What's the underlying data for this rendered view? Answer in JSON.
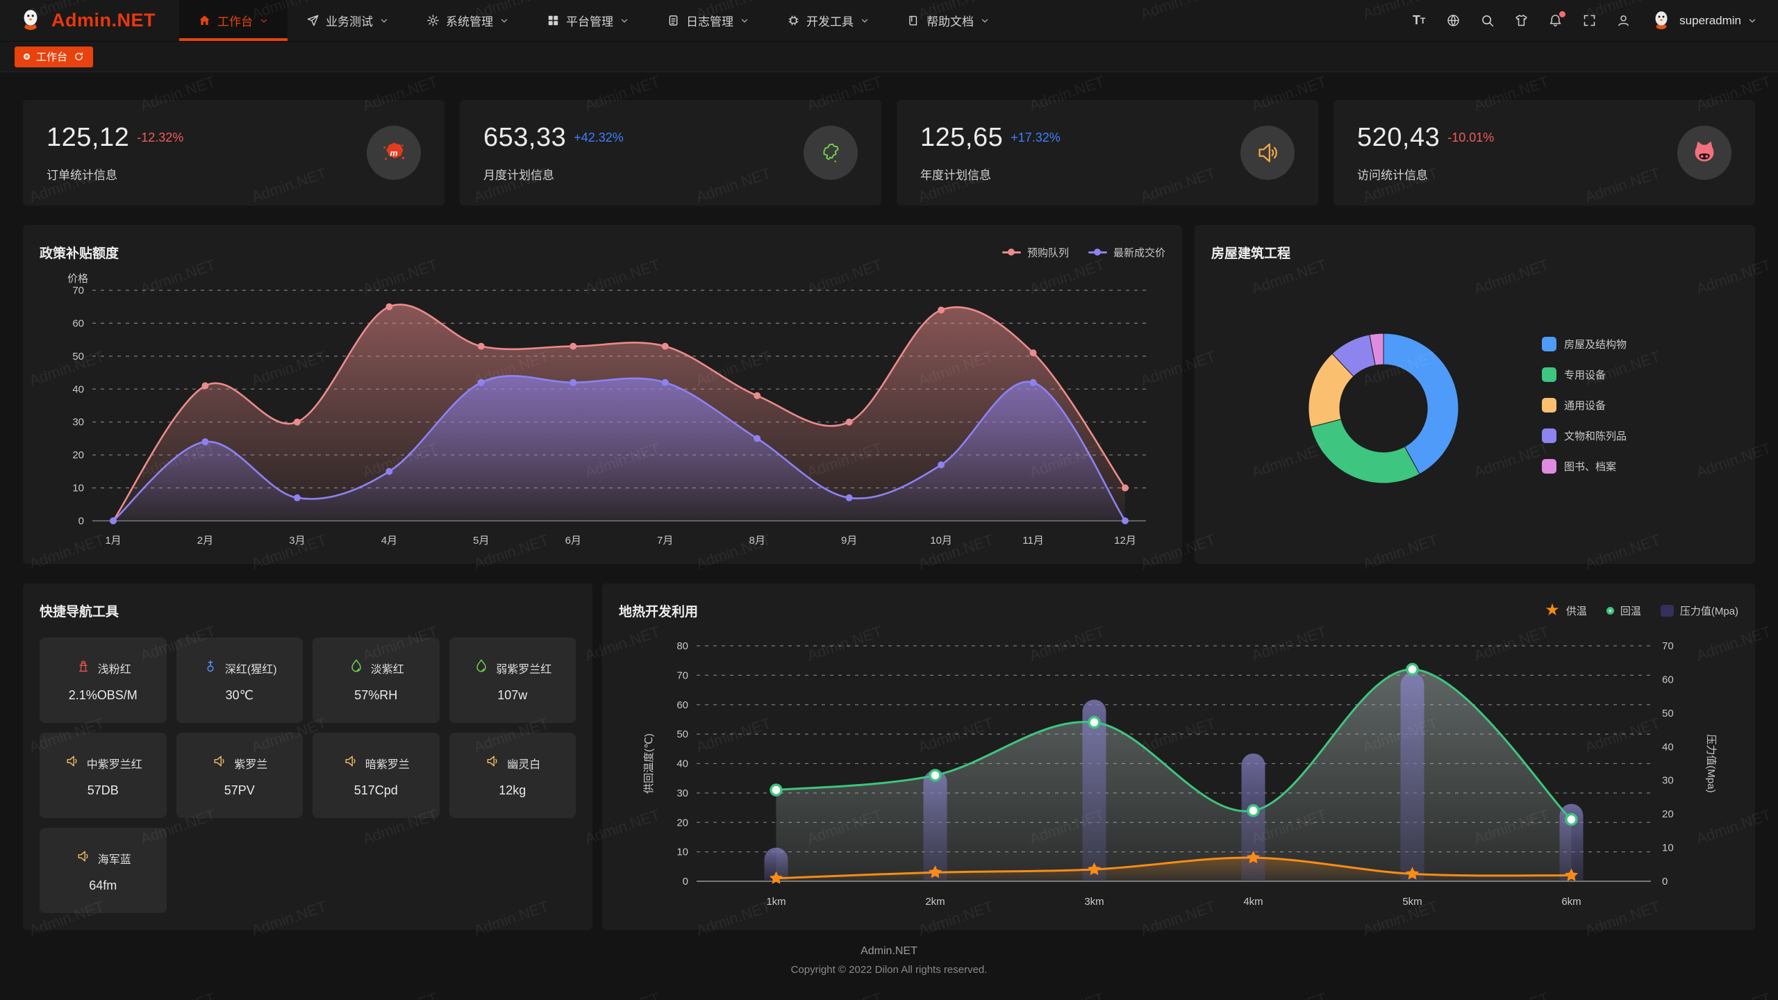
{
  "navbar": {
    "logo_text": "Admin.NET",
    "menu": [
      {
        "key": "workbench",
        "label": "工作台",
        "icon": "home-icon",
        "active": true
      },
      {
        "key": "business-test",
        "label": "业务测试",
        "icon": "send-icon",
        "active": false
      },
      {
        "key": "system-mgmt",
        "label": "系统管理",
        "icon": "gear-icon",
        "active": false
      },
      {
        "key": "platform-mgmt",
        "label": "平台管理",
        "icon": "grid-icon",
        "active": false
      },
      {
        "key": "log-mgmt",
        "label": "日志管理",
        "icon": "log-icon",
        "active": false
      },
      {
        "key": "dev-tools",
        "label": "开发工具",
        "icon": "chip-icon",
        "active": false
      },
      {
        "key": "help-docs",
        "label": "帮助文档",
        "icon": "book-icon",
        "active": false
      }
    ],
    "username": "superadmin"
  },
  "tabbar": {
    "active_tab": "工作台"
  },
  "stat_cards": [
    {
      "key": "orders",
      "value": "125,12",
      "delta": "-12.32%",
      "delta_color": "#f15b5b",
      "label": "订单统计信息",
      "icon": "splat-icon"
    },
    {
      "key": "monthly-plan",
      "value": "653,33",
      "delta": "+42.32%",
      "delta_color": "#3d7fff",
      "label": "月度计划信息",
      "icon": "china-map-icon"
    },
    {
      "key": "yearly-plan",
      "value": "125,65",
      "delta": "+17.32%",
      "delta_color": "#3d7fff",
      "label": "年度计划信息",
      "icon": "speaker-icon"
    },
    {
      "key": "visits",
      "value": "520,43",
      "delta": "-10.01%",
      "delta_color": "#f15b5b",
      "label": "访问统计信息",
      "icon": "cat-icon"
    }
  ],
  "chart_data": [
    {
      "id": "subsidy",
      "type": "area",
      "title": "政策补贴额度",
      "ylabel": "价格",
      "ylim": [
        0,
        70
      ],
      "ytick_interval": 10,
      "grid": "dashed",
      "legend_position": "top-right",
      "categories": [
        "1月",
        "2月",
        "3月",
        "4月",
        "5月",
        "6月",
        "7月",
        "8月",
        "9月",
        "10月",
        "11月",
        "12月"
      ],
      "series": [
        {
          "name": "预购队列",
          "color": "#ec8b8b",
          "values": [
            0,
            41,
            30,
            65,
            53,
            53,
            53,
            38,
            30,
            64,
            51,
            10
          ]
        },
        {
          "name": "最新成交价",
          "color": "#8c82f2",
          "values": [
            0,
            24,
            7,
            15,
            42,
            42,
            42,
            25,
            7,
            17,
            42,
            0
          ]
        }
      ]
    },
    {
      "id": "building",
      "type": "pie",
      "title": "房屋建筑工程",
      "legend_position": "right",
      "slices": [
        {
          "label": "房屋及结构物",
          "value": 42,
          "color": "#4f9bfa"
        },
        {
          "label": "专用设备",
          "value": 29,
          "color": "#3ec57f"
        },
        {
          "label": "通用设备",
          "value": 17,
          "color": "#fac070"
        },
        {
          "label": "文物和陈列品",
          "value": 9,
          "color": "#8d84f0"
        },
        {
          "label": "图书、档案",
          "value": 3,
          "color": "#de8be0"
        }
      ]
    },
    {
      "id": "geothermal",
      "type": "mixed",
      "title": "地热开发利用",
      "categories": [
        "1km",
        "2km",
        "3km",
        "4km",
        "5km",
        "6km"
      ],
      "left_axis": {
        "label": "供回温度(℃)",
        "min": 0,
        "max": 80,
        "interval": 10
      },
      "right_axis": {
        "label": "压力值(Mpa)",
        "min": 0,
        "max": 70,
        "interval": 10
      },
      "legend_position": "top-right",
      "series": [
        {
          "name": "供温",
          "type": "line",
          "marker": "star",
          "axis": "left",
          "color": "#fa8c16",
          "values": [
            1,
            3,
            4,
            8,
            2.5,
            2
          ]
        },
        {
          "name": "回温",
          "type": "line",
          "marker": "circle",
          "axis": "left",
          "color": "#3ec57f",
          "values": [
            31,
            36,
            54,
            24,
            72,
            21
          ]
        },
        {
          "name": "压力值(Mpa)",
          "type": "bar",
          "marker": "bar",
          "axis": "right",
          "color": "#7a75c0",
          "values": [
            10,
            33,
            54,
            38,
            62,
            23
          ]
        }
      ]
    }
  ],
  "quick_nav": {
    "title": "快捷导航工具",
    "items": [
      {
        "name": "浅粉红",
        "value": "2.1%OBS/M",
        "icon": "hydrant-icon",
        "icon_color": "#e04f4f"
      },
      {
        "name": "深红(猩红)",
        "value": "30℃",
        "icon": "thermometer-icon",
        "icon_color": "#5b8ff9"
      },
      {
        "name": "淡紫红",
        "value": "57%RH",
        "icon": "water-drop-icon",
        "icon_color": "#6fcf4f"
      },
      {
        "name": "弱紫罗兰红",
        "value": "107w",
        "icon": "water-drop-icon",
        "icon_color": "#6fcf4f"
      },
      {
        "name": "中紫罗兰红",
        "value": "57DB",
        "icon": "volume-icon",
        "icon_color": "#e8b463"
      },
      {
        "name": "紫罗兰",
        "value": "57PV",
        "icon": "volume-icon",
        "icon_color": "#e8b463"
      },
      {
        "name": "暗紫罗兰",
        "value": "517Cpd",
        "icon": "volume-icon",
        "icon_color": "#e8b463"
      },
      {
        "name": "幽灵白",
        "value": "12kg",
        "icon": "volume-icon",
        "icon_color": "#e8b463"
      },
      {
        "name": "海军蓝",
        "value": "64fm",
        "icon": "volume-icon",
        "icon_color": "#e8b463"
      }
    ]
  },
  "footer": {
    "line1": "Admin.NET",
    "line2": "Copyright © 2022 Dilon All rights reserved."
  },
  "watermark": {
    "text": "Admin.NET"
  }
}
